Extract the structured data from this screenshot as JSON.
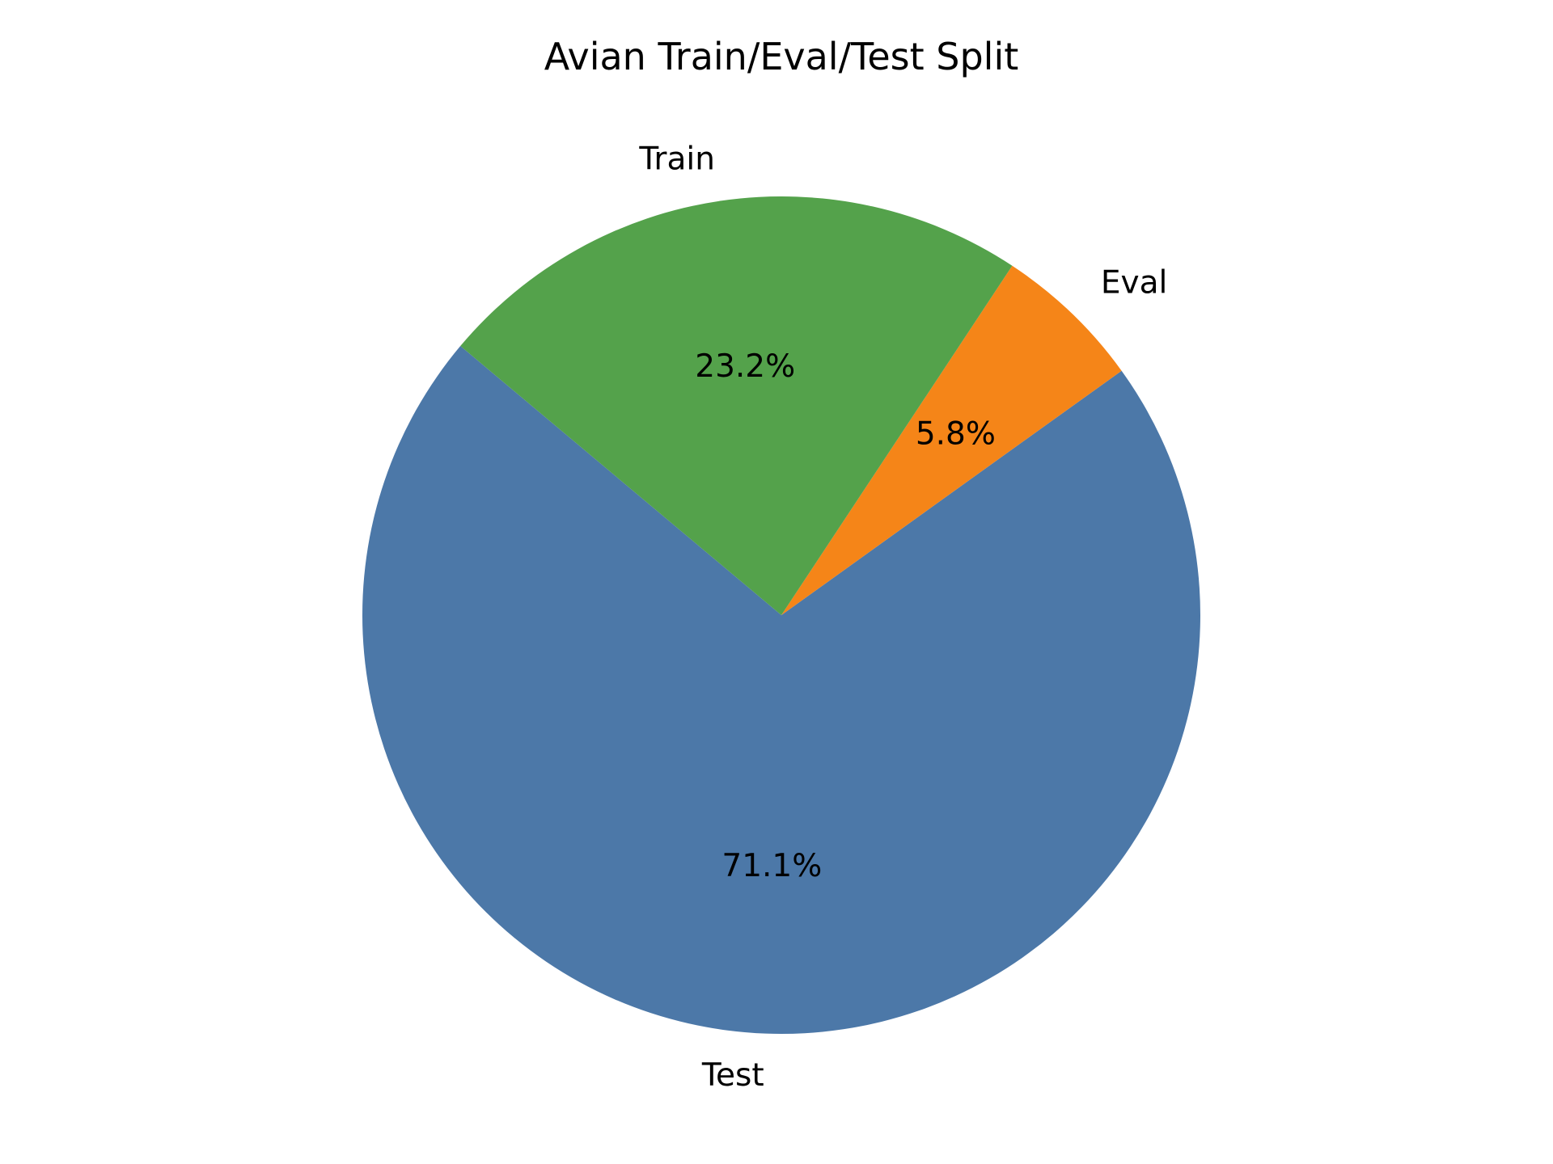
{
  "chart_data": {
    "type": "pie",
    "title": "Avian Train/Eval/Test Split",
    "slices": [
      {
        "label": "Test",
        "value": 71.1,
        "pct_label": "71.1%",
        "color": "#4c78a8"
      },
      {
        "label": "Eval",
        "value": 5.8,
        "pct_label": "5.8%",
        "color": "#f58518"
      },
      {
        "label": "Train",
        "value": 23.2,
        "pct_label": "23.2%",
        "color": "#54a24b"
      }
    ],
    "start_angle_deg": 140,
    "direction": "counterclockwise",
    "legend": "none"
  }
}
